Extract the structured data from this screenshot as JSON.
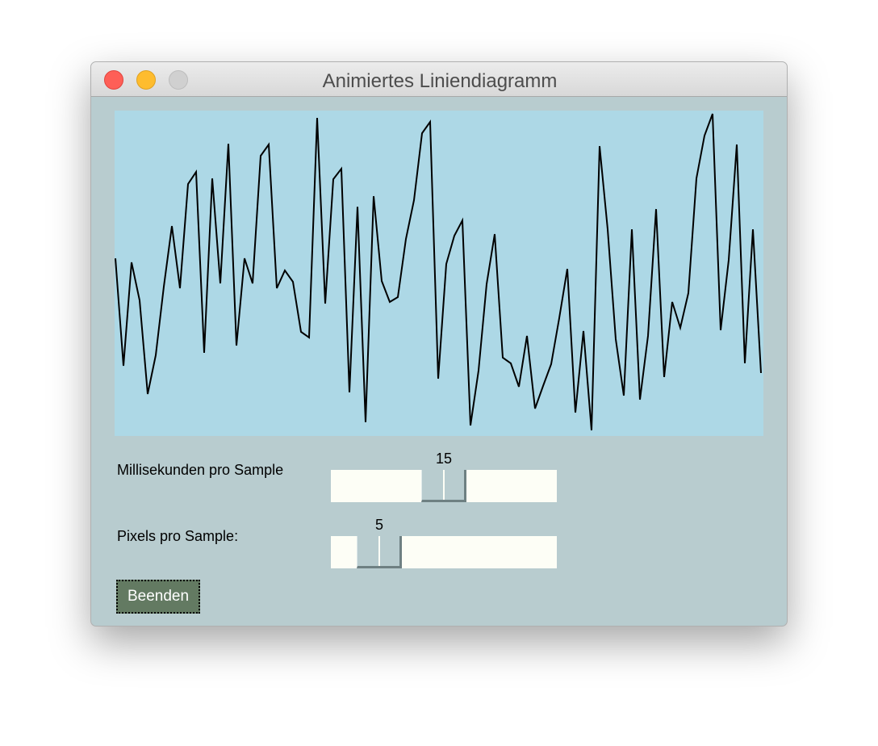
{
  "window": {
    "title": "Animiertes Liniendiagramm"
  },
  "chart_data": {
    "type": "line",
    "color": "#000000",
    "background": "#add8e6",
    "ylim": [
      0,
      402
    ],
    "values": [
      219,
      86,
      214,
      167,
      51,
      99,
      184,
      259,
      182,
      311,
      326,
      102,
      318,
      188,
      361,
      111,
      219,
      188,
      346,
      360,
      182,
      204,
      190,
      128,
      121,
      393,
      163,
      317,
      330,
      53,
      283,
      16,
      296,
      191,
      165,
      171,
      243,
      291,
      374,
      388,
      70,
      212,
      247,
      266,
      12,
      80,
      187,
      249,
      96,
      89,
      60,
      123,
      33,
      61,
      88,
      145,
      206,
      28,
      129,
      6,
      358,
      255,
      119,
      49,
      255,
      44,
      123,
      280,
      72,
      165,
      133,
      176,
      318,
      371,
      398,
      130,
      217,
      360,
      89,
      255,
      77
    ]
  },
  "sliders": [
    {
      "label": "Millisekunden pro Sample",
      "value": 15,
      "range": [
        1,
        29
      ]
    },
    {
      "label": "Pixels pro Sample:",
      "value": 5,
      "range": [
        1,
        29
      ]
    }
  ],
  "button": "Beenden"
}
